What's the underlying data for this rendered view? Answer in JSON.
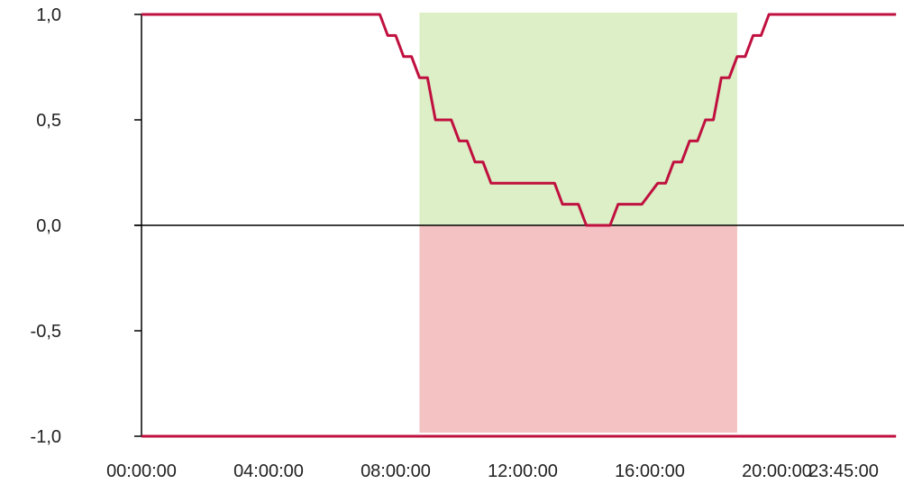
{
  "chart_data": {
    "type": "line",
    "title": "",
    "xlabel": "",
    "ylabel": "",
    "ylim": [
      -1.0,
      1.0
    ],
    "grid": false,
    "y_ticks": [
      "1,0",
      "0,5",
      "0,0",
      "-0,5",
      "-1,0"
    ],
    "y_tick_values": [
      1.0,
      0.5,
      0.0,
      -0.5,
      -1.0
    ],
    "x_ticks": [
      "00:00:00",
      "04:00:00",
      "08:00:00",
      "12:00:00",
      "16:00:00",
      "20:00:00",
      "23:45:00"
    ],
    "x_tick_hours": [
      0,
      4,
      8,
      12,
      16,
      20,
      23.75
    ],
    "shaded_window": {
      "x_start": "08:45:00",
      "x_end": "18:45:00",
      "upper_color": "#dcefc6",
      "lower_color": "#f4c2c2"
    },
    "series": [
      {
        "color": "#c0103f",
        "x": [
          "00:00:00",
          "07:30:00",
          "07:45:00",
          "08:00:00",
          "08:15:00",
          "08:30:00",
          "08:45:00",
          "09:00:00",
          "09:15:00",
          "09:45:00",
          "10:00:00",
          "10:15:00",
          "10:30:00",
          "10:45:00",
          "11:00:00",
          "11:30:00",
          "11:45:00",
          "13:00:00",
          "13:15:00",
          "13:45:00",
          "14:00:00",
          "14:45:00",
          "15:00:00",
          "15:30:00",
          "15:45:00",
          "16:15:00",
          "16:30:00",
          "16:45:00",
          "17:00:00",
          "17:15:00",
          "17:30:00",
          "17:45:00",
          "18:00:00",
          "18:15:00",
          "18:30:00",
          "18:45:00",
          "19:00:00",
          "19:15:00",
          "19:30:00",
          "19:45:00",
          "20:00:00",
          "23:45:00"
        ],
        "values": [
          1.0,
          1.0,
          0.9,
          0.9,
          0.8,
          0.8,
          0.7,
          0.7,
          0.5,
          0.5,
          0.4,
          0.4,
          0.3,
          0.3,
          0.2,
          0.2,
          0.2,
          0.2,
          0.1,
          0.1,
          0.0,
          0.0,
          0.1,
          0.1,
          0.1,
          0.2,
          0.2,
          0.3,
          0.3,
          0.4,
          0.4,
          0.5,
          0.5,
          0.7,
          0.7,
          0.8,
          0.8,
          0.9,
          0.9,
          1.0,
          1.0,
          1.0
        ]
      },
      {
        "color": "#c0103f",
        "x": [
          "00:00:00",
          "23:45:00"
        ],
        "values": [
          -1.0,
          -1.0
        ]
      }
    ]
  }
}
